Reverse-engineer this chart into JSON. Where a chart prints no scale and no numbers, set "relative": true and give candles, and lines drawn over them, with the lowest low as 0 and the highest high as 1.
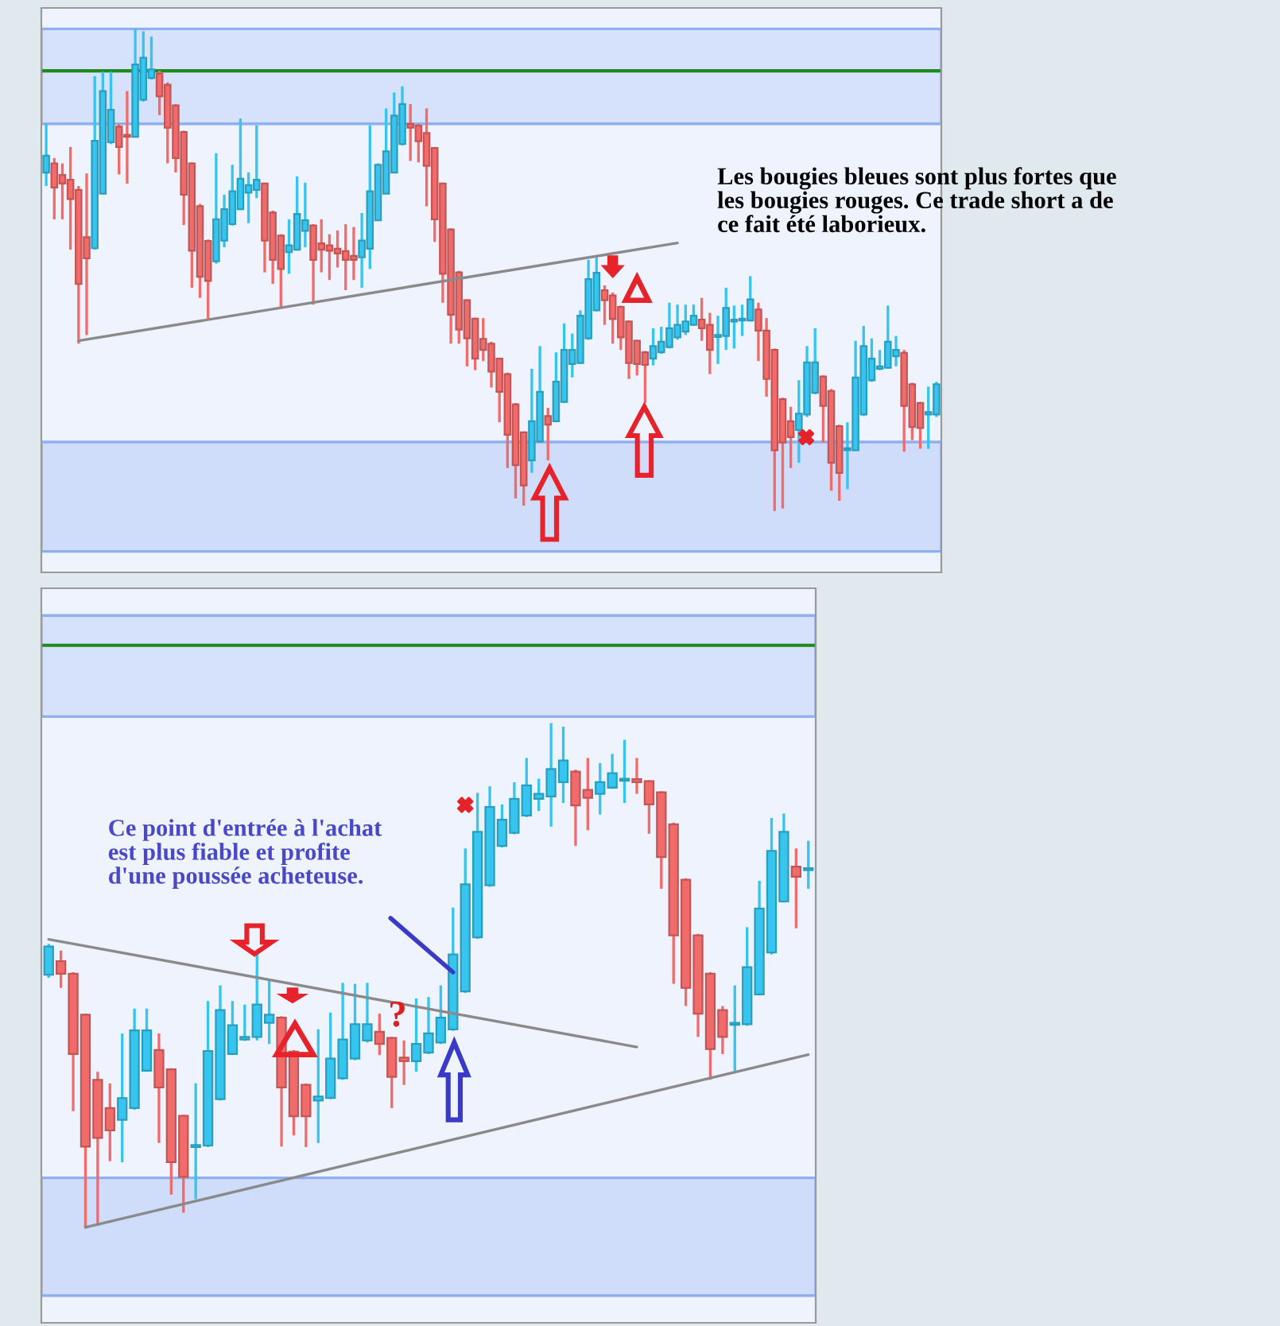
{
  "chart_data": [
    {
      "type": "candlestick",
      "relative": true,
      "categories": [
        null,
        null,
        null,
        null,
        null,
        null,
        null,
        null,
        null,
        null,
        null,
        null,
        null,
        null,
        null,
        null,
        null,
        null,
        null,
        null,
        null,
        null,
        null,
        null,
        null,
        null,
        null,
        null,
        null,
        null,
        null,
        null,
        null,
        null,
        null,
        null,
        null,
        null,
        null,
        null,
        null,
        null,
        null,
        null,
        null,
        null,
        null,
        null,
        null,
        null,
        null,
        null,
        null,
        null,
        null,
        null,
        null,
        null,
        null,
        null,
        null,
        null,
        null,
        null,
        null,
        null,
        null,
        null,
        null,
        null,
        null,
        null,
        null,
        null,
        null,
        null,
        null,
        null,
        null,
        null,
        null,
        null,
        null,
        null,
        null,
        null,
        null,
        null,
        null,
        null,
        null,
        null,
        null,
        null,
        null,
        null,
        null,
        null,
        null,
        null,
        null,
        null,
        null,
        null,
        null,
        null,
        null,
        null,
        null,
        null,
        null
      ],
      "ohlc": [
        [
          0.702,
          0.803,
          0.674,
          0.737
        ],
        [
          0.721,
          0.732,
          0.605,
          0.671
        ],
        [
          0.697,
          0.721,
          0.605,
          0.679
        ],
        [
          0.687,
          0.755,
          0.542,
          0.647
        ],
        [
          0.666,
          0.674,
          0.347,
          0.471
        ],
        [
          0.568,
          0.7,
          0.365,
          0.524
        ],
        [
          0.545,
          0.902,
          0.542,
          0.768
        ],
        [
          0.658,
          0.911,
          0.658,
          0.871
        ],
        [
          0.765,
          0.911,
          0.761,
          0.832
        ],
        [
          0.797,
          0.803,
          0.698,
          0.755
        ],
        [
          0.779,
          0.871,
          0.679,
          0.776
        ],
        [
          0.776,
          1.0,
          0.776,
          0.926
        ],
        [
          0.853,
          0.995,
          0.849,
          0.94
        ],
        [
          0.898,
          0.984,
          0.895,
          0.916
        ],
        [
          0.907,
          0.913,
          0.821,
          0.86
        ],
        [
          0.884,
          0.889,
          0.721,
          0.795
        ],
        [
          0.841,
          0.844,
          0.702,
          0.732
        ],
        [
          0.786,
          0.789,
          0.593,
          0.656
        ],
        [
          0.721,
          0.723,
          0.463,
          0.54
        ],
        [
          0.632,
          0.637,
          0.442,
          0.486
        ],
        [
          0.56,
          0.563,
          0.397,
          0.477
        ],
        [
          0.518,
          0.742,
          0.513,
          0.605
        ],
        [
          0.561,
          0.656,
          0.547,
          0.626
        ],
        [
          0.595,
          0.718,
          0.592,
          0.663
        ],
        [
          0.626,
          0.814,
          0.624,
          0.689
        ],
        [
          0.66,
          0.702,
          0.597,
          0.676
        ],
        [
          0.666,
          0.8,
          0.649,
          0.687
        ],
        [
          0.679,
          0.681,
          0.495,
          0.561
        ],
        [
          0.619,
          0.623,
          0.471,
          0.521
        ],
        [
          0.571,
          0.574,
          0.421,
          0.502
        ],
        [
          0.537,
          0.605,
          0.492,
          0.551
        ],
        [
          0.542,
          0.694,
          0.54,
          0.616
        ],
        [
          0.581,
          0.681,
          0.547,
          0.603
        ],
        [
          0.592,
          0.595,
          0.428,
          0.521
        ],
        [
          0.555,
          0.605,
          0.495,
          0.542
        ],
        [
          0.551,
          0.574,
          0.479,
          0.54
        ],
        [
          0.544,
          0.582,
          0.505,
          0.534
        ],
        [
          0.539,
          0.595,
          0.458,
          0.521
        ],
        [
          0.529,
          0.589,
          0.479,
          0.521
        ],
        [
          0.526,
          0.618,
          0.463,
          0.561
        ],
        [
          0.544,
          0.8,
          0.502,
          0.663
        ],
        [
          0.603,
          0.721,
          0.603,
          0.718
        ],
        [
          0.658,
          0.835,
          0.658,
          0.746
        ],
        [
          0.702,
          0.868,
          0.702,
          0.82
        ],
        [
          0.761,
          0.881,
          0.758,
          0.844
        ],
        [
          0.803,
          0.844,
          0.726,
          0.795
        ],
        [
          0.799,
          0.803,
          0.723,
          0.767
        ],
        [
          0.784,
          0.835,
          0.632,
          0.716
        ],
        [
          0.753,
          0.755,
          0.558,
          0.605
        ],
        [
          0.679,
          0.681,
          0.432,
          0.492
        ],
        [
          0.584,
          0.586,
          0.347,
          0.407
        ],
        [
          0.495,
          0.498,
          0.347,
          0.376
        ],
        [
          0.437,
          0.439,
          0.3,
          0.358
        ],
        [
          0.399,
          0.401,
          0.292,
          0.316
        ],
        [
          0.357,
          0.4,
          0.311,
          0.334
        ],
        [
          0.347,
          0.351,
          0.256,
          0.289
        ],
        [
          0.316,
          0.318,
          0.184,
          0.247
        ],
        [
          0.284,
          0.287,
          0.089,
          0.158
        ],
        [
          0.221,
          0.224,
          0.026,
          0.095
        ],
        [
          0.163,
          0.165,
          0.011,
          0.053
        ],
        [
          0.105,
          0.295,
          0.079,
          0.186
        ],
        [
          0.144,
          0.342,
          0.142,
          0.247
        ],
        [
          0.197,
          0.214,
          0.105,
          0.179
        ],
        [
          0.186,
          0.329,
          0.184,
          0.268
        ],
        [
          0.226,
          0.389,
          0.224,
          0.334
        ],
        [
          0.305,
          0.368,
          0.277,
          0.334
        ],
        [
          0.307,
          0.416,
          0.305,
          0.405
        ],
        [
          0.358,
          0.521,
          0.355,
          0.481
        ],
        [
          0.416,
          0.529,
          0.414,
          0.494
        ],
        [
          0.458,
          0.468,
          0.386,
          0.437
        ],
        [
          0.447,
          0.453,
          0.347,
          0.398
        ],
        [
          0.423,
          0.426,
          0.334,
          0.36
        ],
        [
          0.393,
          0.395,
          0.274,
          0.307
        ],
        [
          0.353,
          0.355,
          0.281,
          0.305
        ],
        [
          0.329,
          0.332,
          0.224,
          0.303
        ],
        [
          0.316,
          0.379,
          0.302,
          0.342
        ],
        [
          0.329,
          0.382,
          0.326,
          0.351
        ],
        [
          0.34,
          0.432,
          0.337,
          0.379
        ],
        [
          0.36,
          0.428,
          0.355,
          0.386
        ],
        [
          0.372,
          0.428,
          0.365,
          0.393
        ],
        [
          0.386,
          0.428,
          0.384,
          0.405
        ],
        [
          0.397,
          0.442,
          0.353,
          0.379
        ],
        [
          0.386,
          0.411,
          0.284,
          0.334
        ],
        [
          0.361,
          0.405,
          0.305,
          0.363
        ],
        [
          0.363,
          0.463,
          0.334,
          0.421
        ],
        [
          0.393,
          0.426,
          0.337,
          0.395
        ],
        [
          0.395,
          0.428,
          0.363,
          0.399
        ],
        [
          0.395,
          0.487,
          0.393,
          0.439
        ],
        [
          0.418,
          0.432,
          0.311,
          0.374
        ],
        [
          0.374,
          0.4,
          0.237,
          0.274
        ],
        [
          0.334,
          0.337,
          0.0,
          0.126
        ],
        [
          0.232,
          0.235,
          0.005,
          0.142
        ],
        [
          0.186,
          0.216,
          0.089,
          0.153
        ],
        [
          0.168,
          0.271,
          0.1,
          0.202
        ],
        [
          0.2,
          0.342,
          0.195,
          0.308
        ],
        [
          0.245,
          0.379,
          0.242,
          0.308
        ],
        [
          0.279,
          0.281,
          0.142,
          0.218
        ],
        [
          0.249,
          0.253,
          0.042,
          0.1
        ],
        [
          0.176,
          0.179,
          0.021,
          0.079
        ],
        [
          0.126,
          0.184,
          0.045,
          0.129
        ],
        [
          0.126,
          0.353,
          0.126,
          0.277
        ],
        [
          0.2,
          0.384,
          0.197,
          0.342
        ],
        [
          0.271,
          0.358,
          0.268,
          0.316
        ],
        [
          0.295,
          0.334,
          0.292,
          0.3
        ],
        [
          0.297,
          0.426,
          0.295,
          0.351
        ],
        [
          0.321,
          0.363,
          0.3,
          0.334
        ],
        [
          0.328,
          0.334,
          0.123,
          0.218
        ],
        [
          0.263,
          0.266,
          0.147,
          0.174
        ],
        [
          0.224,
          0.226,
          0.129,
          0.172
        ],
        [
          0.2,
          0.258,
          0.129,
          0.205
        ],
        [
          0.2,
          0.268,
          0.195,
          0.263
        ]
      ],
      "colors": [
        "#36c5ee",
        "#f26b6b",
        "#f26b6b",
        "#f26b6b",
        "#f26b6b",
        "#f26b6b",
        "#36c5ee",
        "#36c5ee",
        "#36c5ee",
        "#f26b6b",
        "#f26b6b",
        "#36c5ee",
        "#36c5ee",
        "#36c5ee",
        "#f26b6b",
        "#f26b6b",
        "#f26b6b",
        "#f26b6b",
        "#f26b6b",
        "#f26b6b",
        "#f26b6b",
        "#36c5ee",
        "#36c5ee",
        "#36c5ee",
        "#36c5ee",
        "#36c5ee",
        "#36c5ee",
        "#f26b6b",
        "#f26b6b",
        "#f26b6b",
        "#36c5ee",
        "#36c5ee",
        "#36c5ee",
        "#f26b6b",
        "#f26b6b",
        "#f26b6b",
        "#f26b6b",
        "#f26b6b",
        "#f26b6b",
        "#36c5ee",
        "#36c5ee",
        "#36c5ee",
        "#36c5ee",
        "#36c5ee",
        "#36c5ee",
        "#f26b6b",
        "#f26b6b",
        "#f26b6b",
        "#f26b6b",
        "#f26b6b",
        "#f26b6b",
        "#f26b6b",
        "#f26b6b",
        "#f26b6b",
        "#f26b6b",
        "#f26b6b",
        "#f26b6b",
        "#f26b6b",
        "#f26b6b",
        "#f26b6b",
        "#36c5ee",
        "#36c5ee",
        "#f26b6b",
        "#36c5ee",
        "#36c5ee",
        "#36c5ee",
        "#36c5ee",
        "#36c5ee",
        "#36c5ee",
        "#f26b6b",
        "#f26b6b",
        "#f26b6b",
        "#f26b6b",
        "#f26b6b",
        "#f26b6b",
        "#36c5ee",
        "#36c5ee",
        "#36c5ee",
        "#36c5ee",
        "#36c5ee",
        "#36c5ee",
        "#f26b6b",
        "#f26b6b",
        "#36c5ee",
        "#36c5ee",
        "#36c5ee",
        "#36c5ee",
        "#36c5ee",
        "#f26b6b",
        "#f26b6b",
        "#f26b6b",
        "#f26b6b",
        "#f26b6b",
        "#36c5ee",
        "#36c5ee",
        "#36c5ee",
        "#f26b6b",
        "#f26b6b",
        "#f26b6b",
        "#36c5ee",
        "#36c5ee",
        "#36c5ee",
        "#36c5ee",
        "#36c5ee",
        "#36c5ee",
        "#36c5ee",
        "#f26b6b",
        "#f26b6b",
        "#f26b6b",
        "#36c5ee",
        "#36c5ee"
      ],
      "series": [
        {
          "type": "line",
          "values": [
            null,
            null,
            null,
            null,
            0.353,
            null,
            null,
            null,
            null,
            null,
            null,
            null,
            null,
            null,
            null,
            null,
            null,
            null,
            null,
            null,
            null,
            null,
            null,
            null,
            null,
            null,
            null,
            null,
            null,
            null,
            null,
            null,
            null,
            null,
            null,
            null,
            null,
            null,
            null,
            null,
            null,
            null,
            null,
            null,
            null,
            null,
            null,
            null,
            null,
            null,
            null,
            null,
            null,
            null,
            null,
            null,
            null,
            null,
            null,
            null,
            null,
            null,
            null,
            null,
            null,
            null,
            null,
            null,
            null,
            null,
            null,
            null,
            null,
            null,
            null,
            null,
            null,
            null,
            0.556,
            null,
            null,
            null,
            null,
            null,
            null,
            null,
            null,
            null,
            null,
            null,
            null,
            null,
            null,
            null,
            null,
            null,
            null,
            null,
            null,
            null,
            null,
            null,
            null,
            null,
            null,
            null,
            null,
            null,
            null,
            null,
            null
          ],
          "color": "#8a8a8a"
        }
      ],
      "bands": [
        {
          "axis": "y",
          "from": 0.803,
          "to": 1.0,
          "color": "#d6e2fb"
        },
        {
          "axis": "y",
          "from": -0.084,
          "to": 0.143,
          "color": "#cfdcfa"
        }
      ],
      "ref_lines": [
        {
          "axis": "y",
          "value": 0.913,
          "color": "#1e8a1e"
        }
      ],
      "annotations": [
        "Les bougies bleues sont plus fortes que\nles bougies rouges. Ce trade short a de\nce fait été laborieux."
      ]
    },
    {
      "type": "candlestick",
      "relative": true,
      "categories": [
        null,
        null,
        null,
        null,
        null,
        null,
        null,
        null,
        null,
        null,
        null,
        null,
        null,
        null,
        null,
        null,
        null,
        null,
        null,
        null,
        null,
        null,
        null,
        null,
        null,
        null,
        null,
        null,
        null,
        null,
        null,
        null,
        null,
        null,
        null,
        null,
        null,
        null,
        null,
        null,
        null,
        null,
        null,
        null,
        null,
        null,
        null,
        null,
        null,
        null,
        null,
        null,
        null,
        null,
        null,
        null,
        null,
        null,
        null,
        null,
        null,
        null,
        null
      ],
      "ohlc": [
        [
          0.502,
          0.563,
          0.496,
          0.558
        ],
        [
          0.529,
          0.55,
          0.476,
          0.504
        ],
        [
          0.504,
          0.507,
          0.232,
          0.345
        ],
        [
          0.423,
          0.425,
          0.0,
          0.162
        ],
        [
          0.294,
          0.31,
          0.005,
          0.179
        ],
        [
          0.238,
          0.287,
          0.133,
          0.194
        ],
        [
          0.215,
          0.386,
          0.131,
          0.258
        ],
        [
          0.238,
          0.435,
          0.235,
          0.392
        ],
        [
          0.312,
          0.435,
          0.31,
          0.392
        ],
        [
          0.353,
          0.386,
          0.169,
          0.279
        ],
        [
          0.315,
          0.317,
          0.067,
          0.131
        ],
        [
          0.223,
          0.225,
          0.031,
          0.102
        ],
        [
          0.161,
          0.287,
          0.058,
          0.164
        ],
        [
          0.164,
          0.45,
          0.161,
          0.351
        ],
        [
          0.256,
          0.481,
          0.253,
          0.432
        ],
        [
          0.345,
          0.45,
          0.343,
          0.402
        ],
        [
          0.374,
          0.443,
          0.371,
          0.379
        ],
        [
          0.379,
          0.542,
          0.372,
          0.443
        ],
        [
          0.407,
          0.491,
          0.365,
          0.423
        ],
        [
          0.417,
          0.42,
          0.162,
          0.279
        ],
        [
          0.35,
          0.353,
          0.184,
          0.222
        ],
        [
          0.284,
          0.287,
          0.161,
          0.222
        ],
        [
          0.253,
          0.394,
          0.169,
          0.261
        ],
        [
          0.258,
          0.427,
          0.256,
          0.336
        ],
        [
          0.297,
          0.486,
          0.294,
          0.374
        ],
        [
          0.336,
          0.484,
          0.333,
          0.404
        ],
        [
          0.372,
          0.486,
          0.368,
          0.404
        ],
        [
          0.389,
          0.425,
          0.343,
          0.365
        ],
        [
          0.377,
          0.379,
          0.238,
          0.3
        ],
        [
          0.338,
          0.372,
          0.284,
          0.331
        ],
        [
          0.331,
          0.455,
          0.31,
          0.365
        ],
        [
          0.348,
          0.458,
          0.345,
          0.386
        ],
        [
          0.368,
          0.481,
          0.365,
          0.417
        ],
        [
          0.394,
          0.635,
          0.391,
          0.542
        ],
        [
          0.469,
          0.752,
          0.466,
          0.681
        ],
        [
          0.576,
          0.862,
          0.573,
          0.785
        ],
        [
          0.679,
          0.875,
          0.676,
          0.834
        ],
        [
          0.757,
          0.839,
          0.754,
          0.809
        ],
        [
          0.783,
          0.883,
          0.78,
          0.85
        ],
        [
          0.817,
          0.931,
          0.814,
          0.877
        ],
        [
          0.85,
          0.89,
          0.826,
          0.86
        ],
        [
          0.855,
          1.0,
          0.795,
          0.909
        ],
        [
          0.883,
          0.993,
          0.842,
          0.926
        ],
        [
          0.904,
          0.908,
          0.757,
          0.837
        ],
        [
          0.868,
          0.931,
          0.788,
          0.852
        ],
        [
          0.86,
          0.921,
          0.819,
          0.883
        ],
        [
          0.872,
          0.939,
          0.87,
          0.901
        ],
        [
          0.886,
          0.967,
          0.842,
          0.889
        ],
        [
          0.889,
          0.931,
          0.86,
          0.883
        ],
        [
          0.885,
          0.887,
          0.781,
          0.839
        ],
        [
          0.863,
          0.865,
          0.672,
          0.735
        ],
        [
          0.8,
          0.803,
          0.484,
          0.58
        ],
        [
          0.69,
          0.693,
          0.44,
          0.476
        ],
        [
          0.58,
          0.583,
          0.379,
          0.425
        ],
        [
          0.504,
          0.507,
          0.294,
          0.355
        ],
        [
          0.432,
          0.44,
          0.345,
          0.379
        ],
        [
          0.403,
          0.481,
          0.312,
          0.405
        ],
        [
          0.404,
          0.596,
          0.401,
          0.517
        ],
        [
          0.463,
          0.688,
          0.461,
          0.633
        ],
        [
          0.546,
          0.812,
          0.542,
          0.747
        ],
        [
          0.647,
          0.821,
          0.645,
          0.785
        ],
        [
          0.716,
          0.752,
          0.594,
          0.696
        ],
        [
          0.709,
          0.767,
          0.672,
          0.713
        ]
      ],
      "colors": [
        "#36c5ee",
        "#f26b6b",
        "#f26b6b",
        "#f26b6b",
        "#f26b6b",
        "#f26b6b",
        "#36c5ee",
        "#36c5ee",
        "#36c5ee",
        "#f26b6b",
        "#f26b6b",
        "#f26b6b",
        "#36c5ee",
        "#36c5ee",
        "#36c5ee",
        "#36c5ee",
        "#36c5ee",
        "#36c5ee",
        "#36c5ee",
        "#f26b6b",
        "#f26b6b",
        "#f26b6b",
        "#36c5ee",
        "#36c5ee",
        "#36c5ee",
        "#36c5ee",
        "#36c5ee",
        "#f26b6b",
        "#f26b6b",
        "#f26b6b",
        "#36c5ee",
        "#36c5ee",
        "#36c5ee",
        "#36c5ee",
        "#36c5ee",
        "#36c5ee",
        "#36c5ee",
        "#36c5ee",
        "#36c5ee",
        "#36c5ee",
        "#36c5ee",
        "#36c5ee",
        "#36c5ee",
        "#f26b6b",
        "#f26b6b",
        "#36c5ee",
        "#36c5ee",
        "#36c5ee",
        "#f26b6b",
        "#f26b6b",
        "#f26b6b",
        "#f26b6b",
        "#f26b6b",
        "#f26b6b",
        "#f26b6b",
        "#f26b6b",
        "#36c5ee",
        "#36c5ee",
        "#36c5ee",
        "#36c5ee",
        "#36c5ee",
        "#f26b6b",
        "#36c5ee"
      ],
      "series": [
        {
          "type": "line",
          "values": [
            0.572,
            null,
            null,
            null,
            null,
            null,
            null,
            null,
            null,
            null,
            null,
            null,
            null,
            null,
            null,
            null,
            null,
            null,
            null,
            null,
            null,
            null,
            null,
            null,
            null,
            null,
            null,
            null,
            null,
            null,
            null,
            null,
            null,
            null,
            null,
            null,
            null,
            null,
            null,
            null,
            null,
            null,
            null,
            null,
            null,
            null,
            null,
            null,
            0.359,
            null,
            null,
            null,
            null,
            null,
            null,
            null,
            null,
            null,
            null,
            null,
            null,
            null,
            null
          ],
          "color": "#8a8a8a"
        },
        {
          "type": "line",
          "values": [
            null,
            null,
            null,
            0.002,
            null,
            null,
            null,
            null,
            null,
            null,
            null,
            null,
            null,
            null,
            null,
            null,
            null,
            null,
            null,
            null,
            null,
            null,
            null,
            null,
            null,
            null,
            null,
            null,
            null,
            null,
            null,
            null,
            null,
            null,
            null,
            null,
            null,
            null,
            null,
            null,
            null,
            null,
            null,
            null,
            null,
            null,
            null,
            null,
            null,
            null,
            null,
            null,
            null,
            null,
            null,
            null,
            null,
            null,
            null,
            null,
            null,
            null,
            0.344
          ],
          "color": "#8a8a8a"
        }
      ],
      "bands": [
        {
          "axis": "y",
          "from": 1.013,
          "to": 1.213,
          "color": "#d6e2fb"
        },
        {
          "axis": "y",
          "from": -0.133,
          "to": 0.1,
          "color": "#cfdcfa"
        }
      ],
      "ref_lines": [
        {
          "axis": "y",
          "value": 1.154,
          "color": "#1e8a1e"
        }
      ],
      "annotations": [
        "Ce point d'entrée à l'achat\nest plus fiable et profite\nd'une poussée acheteuse.",
        "?"
      ]
    }
  ]
}
